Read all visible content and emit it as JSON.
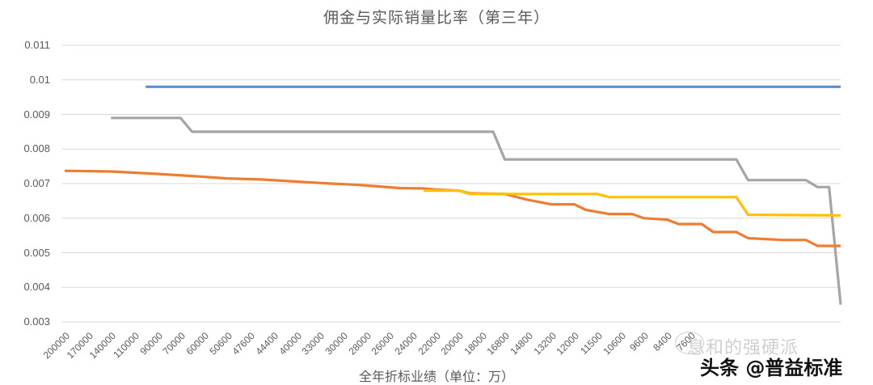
{
  "chart_data": {
    "type": "line",
    "title": "佣金与实际销量比率（第三年）",
    "xlabel": "全年折标业绩（单位：万）",
    "ylabel": "",
    "ylim": [
      0.003,
      0.011
    ],
    "yticks": [
      "0.011",
      "0.01",
      "0.009",
      "0.008",
      "0.007",
      "0.006",
      "0.005",
      "0.004",
      "0.003"
    ],
    "grid": true,
    "legend": "none",
    "x_tick_labels": [
      "200000",
      "170000",
      "140000",
      "110000",
      "90000",
      "70000",
      "60000",
      "50600",
      "47600",
      "44400",
      "40000",
      "33000",
      "30000",
      "28000",
      "26000",
      "24000",
      "22000",
      "20000",
      "18000",
      "16800",
      "14800",
      "13200",
      "12000",
      "11500",
      "10600",
      "9600",
      "8400",
      "7600",
      "",
      "",
      "",
      "",
      "",
      ""
    ],
    "series": [
      {
        "name": "blue",
        "color": "#5b8fc8",
        "points": [
          [
            3.5,
            0.0098
          ],
          [
            33.5,
            0.0098
          ]
        ]
      },
      {
        "name": "gray",
        "color": "#a5a5a5",
        "points": [
          [
            2.0,
            0.0089
          ],
          [
            5.0,
            0.0089
          ],
          [
            5.5,
            0.0085
          ],
          [
            18.5,
            0.0085
          ],
          [
            19.0,
            0.0077
          ],
          [
            29.0,
            0.0077
          ],
          [
            29.5,
            0.0071
          ],
          [
            32.0,
            0.0071
          ],
          [
            32.5,
            0.0069
          ],
          [
            33.0,
            0.0069
          ],
          [
            33.5,
            0.0035
          ]
        ]
      },
      {
        "name": "orange",
        "color": "#ed7d31",
        "points": [
          [
            0.0,
            0.00737
          ],
          [
            2.0,
            0.00735
          ],
          [
            4.0,
            0.00728
          ],
          [
            5.5,
            0.00722
          ],
          [
            7.0,
            0.00715
          ],
          [
            8.5,
            0.00712
          ],
          [
            9.5,
            0.00708
          ],
          [
            10.5,
            0.00704
          ],
          [
            11.5,
            0.007
          ],
          [
            12.5,
            0.00697
          ],
          [
            13.5,
            0.00692
          ],
          [
            14.5,
            0.00687
          ],
          [
            15.5,
            0.00686
          ],
          [
            16.0,
            0.00683
          ],
          [
            17.0,
            0.0068
          ],
          [
            17.5,
            0.00672
          ],
          [
            19.0,
            0.0067
          ],
          [
            20.0,
            0.00653
          ],
          [
            21.0,
            0.0064
          ],
          [
            22.0,
            0.0064
          ],
          [
            22.5,
            0.00624
          ],
          [
            23.5,
            0.00612
          ],
          [
            24.5,
            0.00612
          ],
          [
            25.0,
            0.006
          ],
          [
            26.0,
            0.00596
          ],
          [
            26.5,
            0.00583
          ],
          [
            27.5,
            0.00583
          ],
          [
            28.0,
            0.0056
          ],
          [
            29.0,
            0.0056
          ],
          [
            29.5,
            0.00542
          ],
          [
            31.0,
            0.00537
          ],
          [
            32.0,
            0.00537
          ],
          [
            32.5,
            0.0052
          ],
          [
            33.5,
            0.0052
          ]
        ]
      },
      {
        "name": "yellow",
        "color": "#ffc000",
        "points": [
          [
            15.5,
            0.0068
          ],
          [
            17.0,
            0.0068
          ],
          [
            17.5,
            0.0067
          ],
          [
            23.0,
            0.0067
          ],
          [
            23.5,
            0.00661
          ],
          [
            29.0,
            0.00661
          ],
          [
            29.5,
            0.0061
          ],
          [
            33.5,
            0.00608
          ]
        ]
      }
    ]
  },
  "title": "佣金与实际销量比率（第三年）",
  "x_axis_label": "全年折标业绩（单位：万）",
  "watermark": {
    "line1": "息和的强硬派",
    "line2": "头条 @普益标准"
  }
}
